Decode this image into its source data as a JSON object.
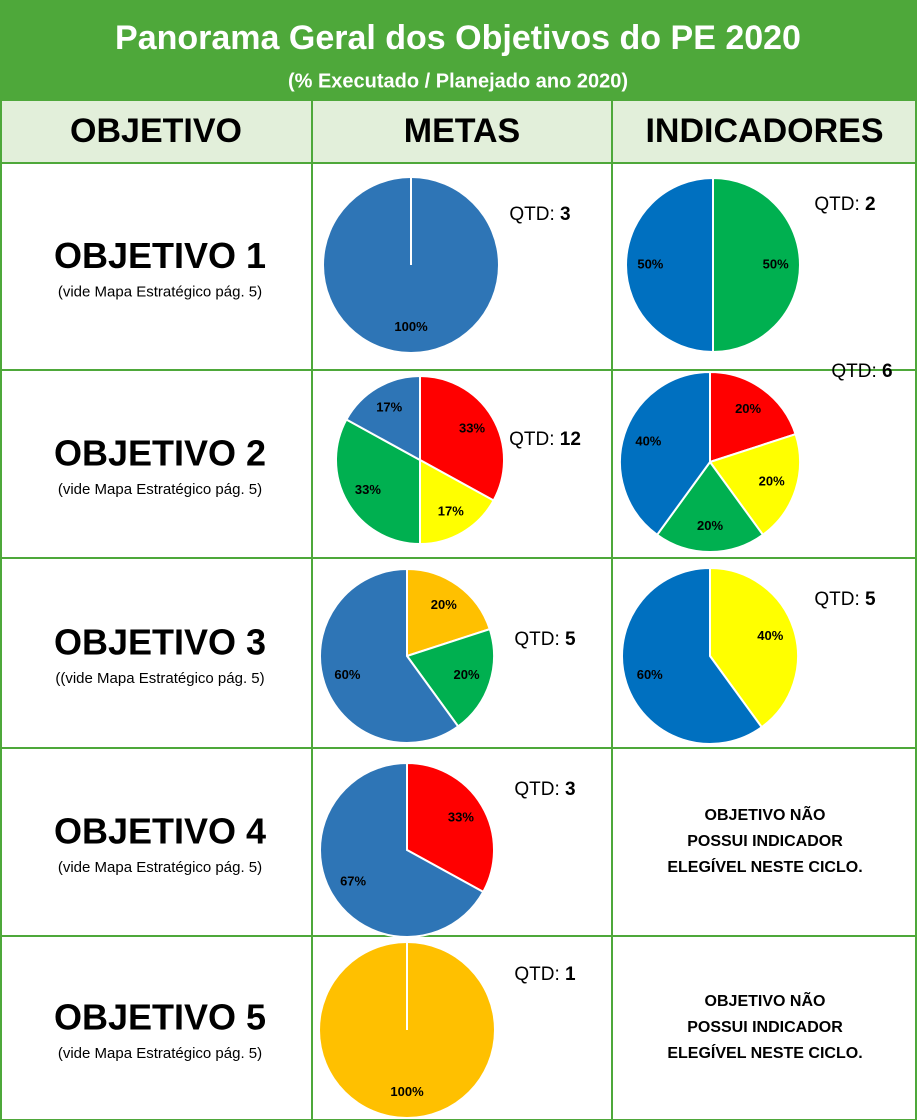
{
  "header": {
    "title": "Panorama Geral dos Objetivos do PE 2020",
    "subtitle": "(% Executado / Planejado ano 2020)"
  },
  "columns": [
    "OBJETIVO",
    "METAS",
    "INDICADORES"
  ],
  "rows": [
    {
      "objective": "OBJETIVO 1",
      "note": "(vide Mapa Estratégico pág. 5)"
    },
    {
      "objective": "OBJETIVO 2",
      "note": "(vide Mapa Estratégico pág. 5)"
    },
    {
      "objective": "OBJETIVO 3",
      "note": "((vide Mapa Estratégico pág. 5)"
    },
    {
      "objective": "OBJETIVO 4",
      "note": "(vide Mapa Estratégico pág. 5)",
      "no_indicator": [
        "OBJETIVO  NÃO",
        "POSSUI INDICADOR",
        "ELEGÍVEL NESTE CICLO."
      ]
    },
    {
      "objective": "OBJETIVO 5",
      "note": "(vide Mapa Estratégico pág. 5)",
      "no_indicator": [
        "OBJETIVO  NÃO",
        "POSSUI INDICADOR",
        "ELEGÍVEL NESTE CICLO."
      ]
    }
  ],
  "chart_data": [
    {
      "type": "pie",
      "qtd_label": "QTD:",
      "qtd": 3,
      "values": [
        100
      ],
      "value_labels": [
        "100%"
      ],
      "colors": [
        "#2e75b6"
      ]
    },
    {
      "type": "pie",
      "qtd_label": "QTD:",
      "qtd": 2,
      "values": [
        50,
        50
      ],
      "value_labels": [
        "50%",
        "50%"
      ],
      "colors": [
        "#00b050",
        "#0070c0"
      ]
    },
    {
      "type": "pie",
      "qtd_label": "QTD:",
      "qtd": 12,
      "values": [
        33,
        17,
        33,
        17
      ],
      "value_labels": [
        "33%",
        "17%",
        "33%",
        "17%"
      ],
      "colors": [
        "#ff0000",
        "#ffff00",
        "#00b050",
        "#2e75b6"
      ]
    },
    {
      "type": "pie",
      "qtd_label": "QTD:",
      "qtd": 6,
      "values": [
        20,
        20,
        20,
        40
      ],
      "value_labels": [
        "20%",
        "20%",
        "20%",
        "40%"
      ],
      "colors": [
        "#ff0000",
        "#ffff00",
        "#00b050",
        "#0070c0"
      ]
    },
    {
      "type": "pie",
      "qtd_label": "QTD:",
      "qtd": 5,
      "values": [
        20,
        20,
        60
      ],
      "value_labels": [
        "20%",
        "20%",
        "60%"
      ],
      "colors": [
        "#ffc000",
        "#00b050",
        "#2e75b6"
      ]
    },
    {
      "type": "pie",
      "qtd_label": "QTD:",
      "qtd": 5,
      "values": [
        40,
        60
      ],
      "value_labels": [
        "40%",
        "60%"
      ],
      "colors": [
        "#ffff00",
        "#0070c0"
      ]
    },
    {
      "type": "pie",
      "qtd_label": "QTD:",
      "qtd": 3,
      "values": [
        33,
        67
      ],
      "value_labels": [
        "33%",
        "67%"
      ],
      "colors": [
        "#ff0000",
        "#2e75b6"
      ]
    },
    {
      "type": "pie",
      "qtd_label": "QTD:",
      "qtd": 1,
      "values": [
        100
      ],
      "value_labels": [
        "100%"
      ],
      "colors": [
        "#ffc000"
      ]
    }
  ]
}
